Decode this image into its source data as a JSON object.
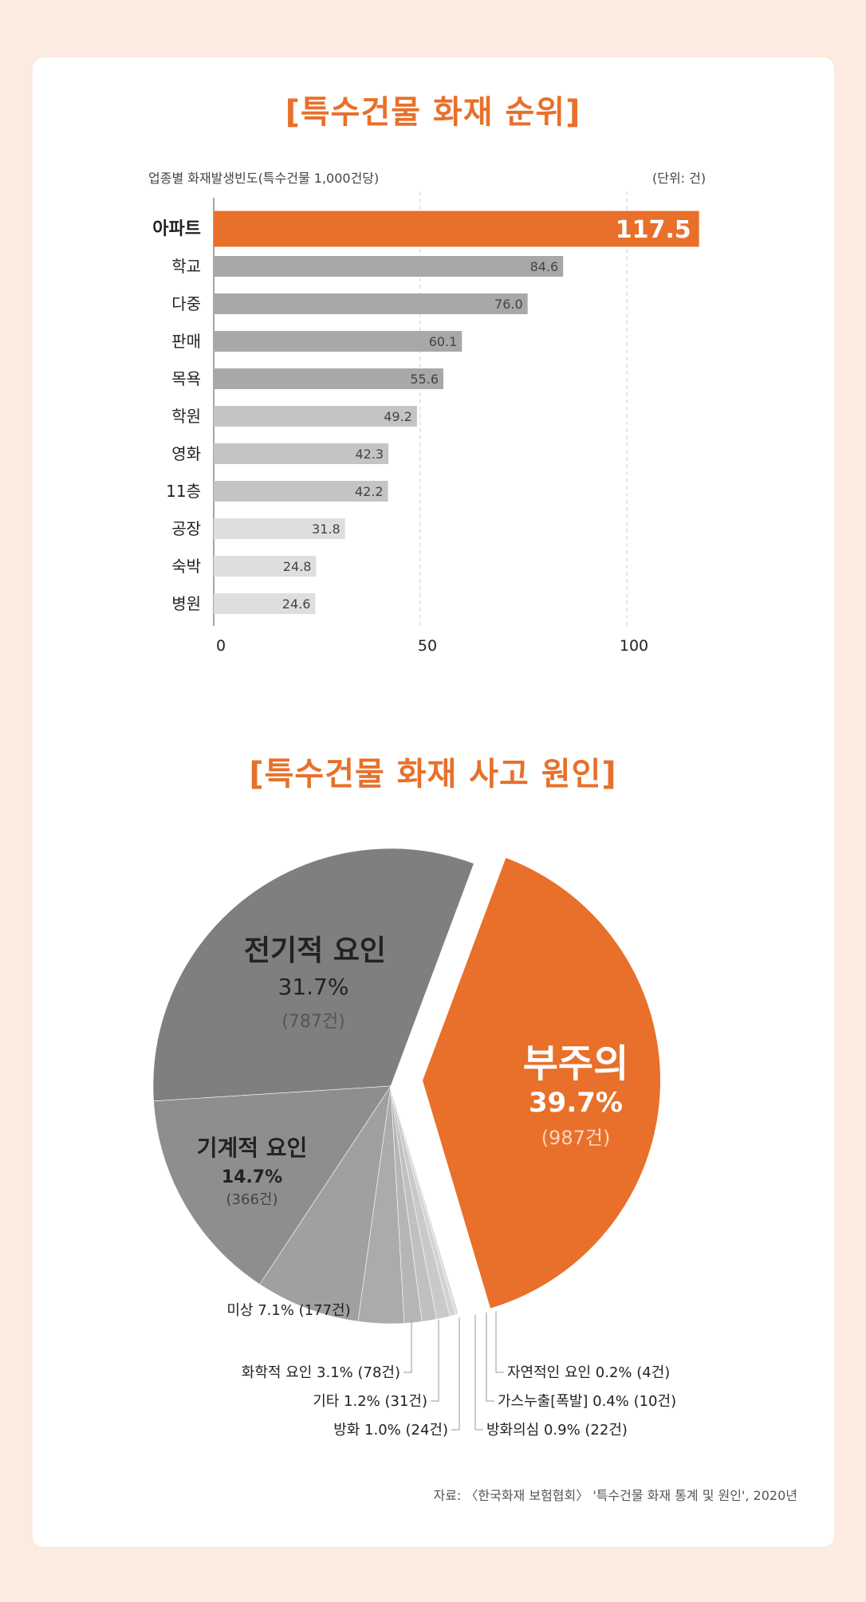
{
  "bar_section": {
    "title": "[특수건물 화재 순위]",
    "subtitle": "업종별 화재발생빈도(특수건물 1,000건당)",
    "unit": "(단위: 건)"
  },
  "pie_section": {
    "title": "[특수건물 화재 사고 원인]"
  },
  "source": "자료: 〈한국화재 보험협회〉 '특수건물 화재 통계 및 원인', 2020년",
  "colors": {
    "accent": "#e8702a",
    "bar_dark": "#a8a8a8",
    "bar_mid": "#c4c4c4",
    "bar_light": "#dedede",
    "pie_elec": "#7f7f7f",
    "pie_mech": "#8e8e8e",
    "pie_unknown": "#a0a0a0"
  },
  "chart_data": [
    {
      "type": "bar",
      "orientation": "horizontal",
      "title": "[특수건물 화재 순위]",
      "subtitle": "업종별 화재발생빈도(특수건물 1,000건당)",
      "unit": "(단위: 건)",
      "categories": [
        "아파트",
        "학교",
        "다중",
        "판매",
        "목욕",
        "학원",
        "영화",
        "11층",
        "공장",
        "숙박",
        "병원"
      ],
      "values": [
        117.5,
        84.6,
        76.0,
        60.1,
        55.6,
        49.2,
        42.3,
        42.2,
        31.8,
        24.8,
        24.6
      ],
      "value_labels": [
        "117.5",
        "84.6",
        "76.0",
        "60.1",
        "55.6",
        "49.2",
        "42.3",
        "42.2",
        "31.8",
        "24.8",
        "24.6"
      ],
      "xlim": [
        0,
        117.5
      ],
      "xticks": [
        "0",
        "50",
        "100"
      ],
      "xtick_values": [
        0,
        50,
        100
      ],
      "grid": "vertical dashed at 50 and 100",
      "highlight": "아파트"
    },
    {
      "type": "pie",
      "title": "[특수건물 화재 사고 원인]",
      "slices": [
        {
          "name": "부주의",
          "percent": 39.7,
          "pct_label": "39.7%",
          "count": "(987건)",
          "exploded": true,
          "color": "#e8702a"
        },
        {
          "name": "전기적 요인",
          "percent": 31.7,
          "pct_label": "31.7%",
          "count": "(787건)",
          "color": "#7f7f7f"
        },
        {
          "name": "기계적 요인",
          "percent": 14.7,
          "pct_label": "14.7%",
          "count": "(366건)",
          "color": "#8e8e8e"
        },
        {
          "name": "미상",
          "percent": 7.1,
          "label": "미상 7.1% (177건)",
          "color": "#a0a0a0"
        },
        {
          "name": "화학적 요인",
          "percent": 3.1,
          "label": "화학적 요인 3.1% (78건)",
          "color": "#ababab"
        },
        {
          "name": "기타",
          "percent": 1.2,
          "label": "기타 1.2% (31건)",
          "color": "#b6b6b6"
        },
        {
          "name": "방화",
          "percent": 1.0,
          "label": "방화 1.0% (24건)",
          "color": "#c0c0c0"
        },
        {
          "name": "방화의심",
          "percent": 0.9,
          "label": "방화의심 0.9% (22건)",
          "color": "#c9c9c9"
        },
        {
          "name": "가스누출[폭발]",
          "percent": 0.4,
          "label": "가스누출[폭발] 0.4% (10건)",
          "color": "#d2d2d2"
        },
        {
          "name": "자연적인 요인",
          "percent": 0.2,
          "label": "자연적인 요인 0.2% (4건)",
          "color": "#dadada"
        }
      ]
    }
  ]
}
